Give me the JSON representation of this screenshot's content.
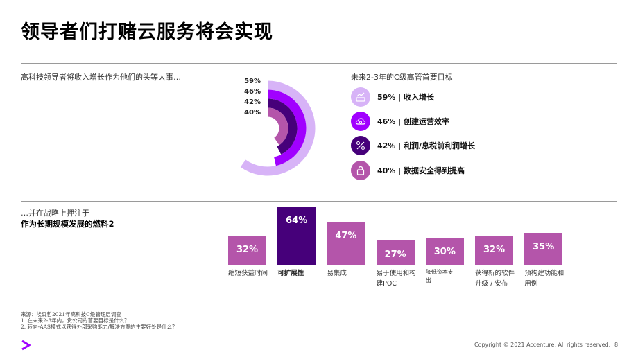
{
  "title": "领导者们打赌云服务将会实现",
  "left_heading": "高科技领导者将收入增长作为他们的头等大事…",
  "right_heading": "未来2-3年的C级高管首要目标",
  "rings": {
    "labels": [
      "59%",
      "46%",
      "42%",
      "40%"
    ],
    "values": [
      59,
      46,
      42,
      40
    ],
    "colors": [
      "#d7b3f7",
      "#a100ff",
      "#46007a",
      "#b455aa"
    ]
  },
  "goals": [
    {
      "label": "59% | 收入增长",
      "icon": "revenue-growth-icon",
      "color": "#d7b3f7"
    },
    {
      "label": "46% | 创建运营效率",
      "icon": "cloud-gear-icon",
      "color": "#a100ff"
    },
    {
      "label": "42% | 利润/息税前利润增长",
      "icon": "percent-icon",
      "color": "#46007a"
    },
    {
      "label": "40% | 数据安全得到提高",
      "icon": "lock-icon",
      "color": "#b455aa"
    }
  ],
  "lower_heading_1": "…并在战略上押注于",
  "lower_heading_2": "作为长期规模发展的燃料2",
  "chart_data": {
    "type": "bar",
    "categories": [
      "缩短获益时间",
      "可扩展性",
      "易集成",
      "易于使用和构建POC",
      "降低资本支出",
      "获得新的软件升级 / 安布",
      "预构建功能和用例"
    ],
    "values": [
      32,
      64,
      47,
      27,
      30,
      32,
      35
    ],
    "value_labels": [
      "32%",
      "64%",
      "47%",
      "27%",
      "30%",
      "32%",
      "35%"
    ],
    "colors": [
      "#b455aa",
      "#46007a",
      "#b455aa",
      "#b455aa",
      "#b455aa",
      "#b455aa",
      "#b455aa"
    ],
    "highlight": "可扩展性"
  },
  "footnotes": [
    "来源：埃森哲2021年高科技C级管理层调查",
    "1. 在未来2-3年内，贵公司的首要目标是什么？",
    "2. 转向-AAS模式以获得外部采购能力/解决方案的主要好处是什么？"
  ],
  "copyright": "Copyright © 2021 Accenture. All rights reserved.",
  "page_number": "8"
}
